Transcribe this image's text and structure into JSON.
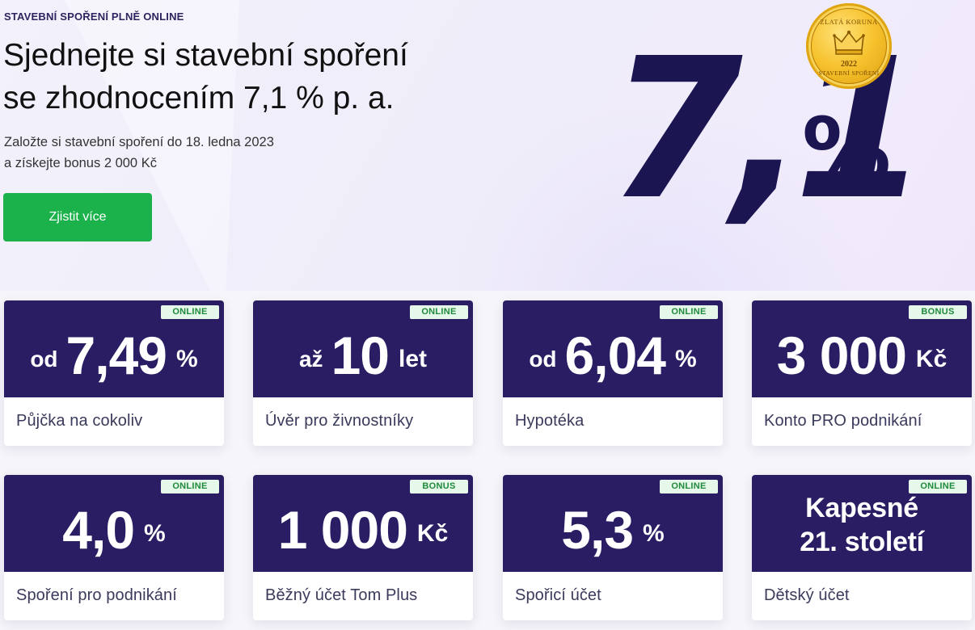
{
  "hero": {
    "eyebrow": "STAVEBNÍ SPOŘENÍ PLNĚ ONLINE",
    "headline_line1": "Sjednejte si stavební spoření",
    "headline_line2": "se zhodnocením 7,1 % p. a.",
    "subtext_line1": "Založte si stavební spoření do 18. ledna 2023",
    "subtext_line2": "a získejte bonus 2 000 Kč",
    "cta_label": "Zjistit více",
    "big_rate_value": "7,1",
    "big_rate_unit": "%",
    "medal": {
      "top_text": "ZLATÁ KORUNA",
      "year": "2022",
      "bottom_text": "STAVEBNÍ SPOŘENÍ"
    }
  },
  "colors": {
    "primary_dark": "#2a1d63",
    "cta_green": "#1bb24b",
    "badge_bg": "#e6f8ea",
    "badge_text": "#1f8a3b"
  },
  "cards": [
    {
      "badge": "ONLINE",
      "prefix": "od",
      "value": "7,49",
      "suffix": "%",
      "label": "Půjčka na cokoliv"
    },
    {
      "badge": "ONLINE",
      "prefix": "až",
      "value": "10",
      "suffix": "let",
      "label": "Úvěr pro živnostníky"
    },
    {
      "badge": "ONLINE",
      "prefix": "od",
      "value": "6,04",
      "suffix": "%",
      "label": "Hypotéka"
    },
    {
      "badge": "BONUS",
      "prefix": "",
      "value": "3 000",
      "suffix": "Kč",
      "label": "Konto PRO podnikání"
    },
    {
      "badge": "ONLINE",
      "prefix": "",
      "value": "4,0",
      "suffix": "%",
      "label": "Spoření pro podnikání"
    },
    {
      "badge": "BONUS",
      "prefix": "",
      "value": "1 000",
      "suffix": "Kč",
      "label": "Běžný účet Tom Plus"
    },
    {
      "badge": "ONLINE",
      "prefix": "",
      "value": "5,3",
      "suffix": "%",
      "label": "Spořicí účet"
    },
    {
      "badge": "ONLINE",
      "value_line1": "Kapesné",
      "value_line2": "21. století",
      "label": "Dětský účet"
    }
  ]
}
